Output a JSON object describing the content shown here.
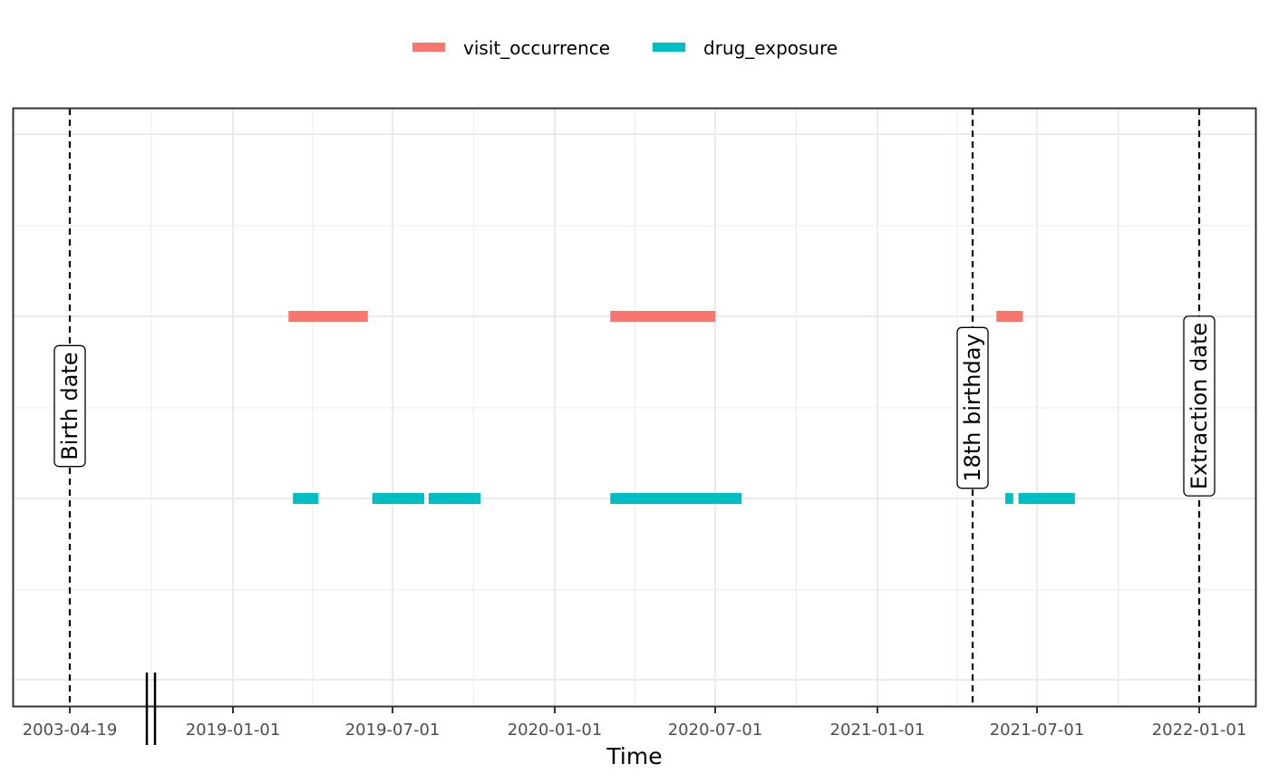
{
  "chart_data": {
    "type": "timeline",
    "title": "",
    "xlabel": "Time",
    "ylabel": "",
    "grid": true,
    "legend_position": "top",
    "axis_break": "between 2003-04-19 and 2019-01-01",
    "x_ticks": [
      "2003-04-19",
      "2019-01-01",
      "2019-07-01",
      "2020-01-01",
      "2020-07-01",
      "2021-01-01",
      "2021-07-01",
      "2022-01-01"
    ],
    "series": [
      {
        "name": "visit_occurrence",
        "color": "#F8766D",
        "segments": [
          {
            "start": "2019-03-05",
            "end": "2019-06-03"
          },
          {
            "start": "2020-03-04",
            "end": "2020-07-01"
          },
          {
            "start": "2021-05-16",
            "end": "2021-06-15"
          }
        ]
      },
      {
        "name": "drug_exposure",
        "color": "#00BFC4",
        "segments": [
          {
            "start": "2019-03-10",
            "end": "2019-04-08"
          },
          {
            "start": "2019-06-08",
            "end": "2019-08-06"
          },
          {
            "start": "2019-08-11",
            "end": "2019-10-09"
          },
          {
            "start": "2020-03-04",
            "end": "2020-07-31"
          },
          {
            "start": "2021-05-26",
            "end": "2021-06-04"
          },
          {
            "start": "2021-06-10",
            "end": "2021-08-13"
          }
        ]
      }
    ],
    "events": [
      {
        "label": "Birth date",
        "date": "2003-04-19"
      },
      {
        "label": "18th birthday",
        "date": "2021-04-19"
      },
      {
        "label": "Extraction date",
        "date": "2022-01-01"
      }
    ]
  }
}
